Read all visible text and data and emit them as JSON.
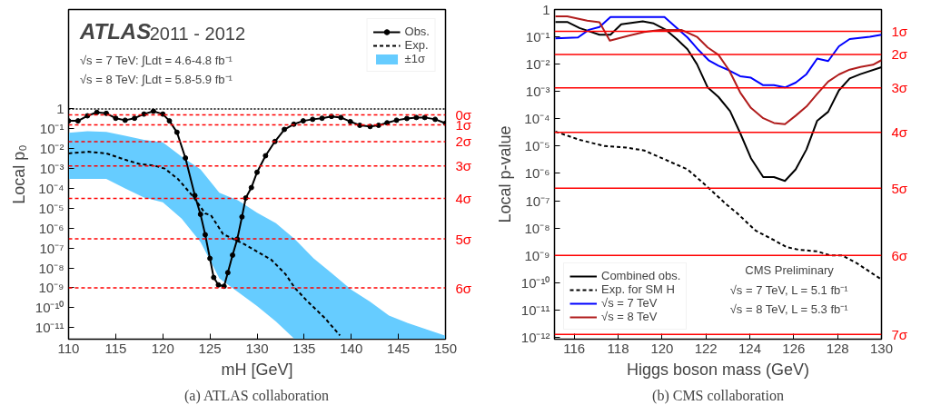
{
  "chart_data": [
    {
      "type": "line",
      "xlabel": "mH [GeV]",
      "ylabel": "Local p₀",
      "log": "y",
      "grid": false,
      "legend": "top right",
      "xlim": [
        110,
        150
      ],
      "xticks": [
        110,
        115,
        120,
        125,
        130,
        135,
        140,
        145,
        150
      ],
      "ylim": [
        2.6e-12,
        100000.0
      ],
      "yticks": [
        1,
        {
          "value": 0.1,
          "label": "10⁻¹"
        },
        {
          "value": 0.01,
          "label": "10⁻²"
        },
        {
          "value": 0.001,
          "label": "10⁻³"
        },
        {
          "value": 0.0001,
          "label": "10⁻⁴"
        },
        {
          "value": 1e-05,
          "label": "10⁻⁵"
        },
        {
          "value": 1e-06,
          "label": "10⁻⁶"
        },
        {
          "value": 1e-07,
          "label": "10⁻⁷"
        },
        {
          "value": 1e-08,
          "label": "10⁻⁸"
        },
        {
          "value": 1e-09,
          "label": "10⁻⁹"
        },
        {
          "value": 1e-10,
          "label": "10⁻¹⁰"
        },
        {
          "value": 1e-11,
          "label": "10⁻¹¹"
        }
      ],
      "series": [
        {
          "name": "Obs.",
          "color": "#000000",
          "marker": "circle",
          "line_style": "solid",
          "x": [
            110,
            111,
            112,
            113,
            114,
            115,
            116,
            117,
            118,
            119,
            120,
            120.7,
            121.5,
            122.4,
            123.4,
            124,
            124.5,
            125,
            125.4,
            125.9,
            126.5,
            126.9,
            127.4,
            127.9,
            128.4,
            128.8,
            129.4,
            130,
            130.9,
            131.9,
            132.9,
            133.9,
            134.9,
            135.9,
            136.9,
            137.9,
            138.9,
            139.9,
            140.9,
            142,
            142.9,
            143.8,
            144.8,
            145.9,
            146.9,
            147.8,
            148.9,
            150
          ],
          "values": [
            0.25,
            0.25,
            0.45,
            0.67,
            0.6,
            0.34,
            0.27,
            0.34,
            0.55,
            0.76,
            0.55,
            0.25,
            0.067,
            0.0034,
            4.4e-05,
            5e-06,
            4.7e-07,
            3e-08,
            3.3e-09,
            1.4e-09,
            1.2e-09,
            5.8e-09,
            4.4e-08,
            2.8e-07,
            3.7e-06,
            3.3e-05,
            0.00011,
            0.00065,
            0.0044,
            0.023,
            0.093,
            0.17,
            0.25,
            0.3,
            0.34,
            0.42,
            0.37,
            0.23,
            0.15,
            0.13,
            0.15,
            0.2,
            0.27,
            0.33,
            0.37,
            0.37,
            0.3,
            0.19
          ]
        },
        {
          "name": "Exp.",
          "color": "#000000",
          "line_style": "dashed",
          "x": [
            110,
            112.1,
            114,
            116.2,
            117.5,
            119.1,
            120.2,
            121.6,
            123.2,
            124.5,
            125.1,
            126.4,
            128.6,
            131.5,
            133,
            134,
            135.3,
            137.2,
            138.8
          ],
          "values": [
            0.0058,
            0.007,
            0.0058,
            0.0026,
            0.0017,
            0.0014,
            0.001,
            0.0003,
            4e-05,
            5.5e-06,
            4.5e-06,
            5e-07,
            1.6e-07,
            2.6e-08,
            5e-09,
            1e-09,
            2.2e-10,
            3e-11,
            4e-12
          ]
        },
        {
          "name": "±1σ",
          "type": "area",
          "color": "#66ccff",
          "x": [
            110,
            112,
            114,
            116,
            118,
            120,
            122,
            124,
            126,
            128,
            130,
            132,
            134,
            136,
            138,
            140,
            142,
            144,
            146,
            148,
            150
          ],
          "values": [
            null,
            null,
            null,
            null,
            null,
            null,
            null,
            null,
            null,
            null,
            null,
            null,
            null,
            null,
            null,
            null,
            null,
            null,
            null,
            null,
            null
          ],
          "upper": [
            0.063,
            0.075,
            0.07,
            0.045,
            0.028,
            0.021,
            0.004,
            0.0009,
            6e-05,
            2.5e-05,
            6e-06,
            1.8e-06,
            2.8e-07,
            3e-08,
            5e-09,
            8e-10,
            2e-10,
            4e-11,
            1.7e-11,
            8e-12,
            3.9e-12
          ],
          "lower": [
            0.0003,
            0.0003,
            0.0003,
            0.0001,
            3.5e-05,
            2e-05,
            3e-06,
            2e-07,
            3e-09,
            6e-10,
            1.2e-10,
            2e-11,
            2.6e-12,
            2.6e-12,
            2.6e-12,
            2.6e-12,
            2.6e-12,
            2.6e-12,
            2.6e-12,
            2.6e-12,
            2.6e-12
          ]
        }
      ],
      "ref_lines": [
        {
          "axis": "y",
          "value": 1,
          "color": "#000000",
          "line_style": "dotted"
        },
        {
          "axis": "y",
          "value": 0.5,
          "label": "0σ",
          "color": "#ff0000",
          "line_style": "dashed"
        },
        {
          "axis": "y",
          "value": 0.1587,
          "label": "1σ",
          "color": "#ff0000",
          "line_style": "dashed"
        },
        {
          "axis": "y",
          "value": 0.02275,
          "label": "2σ",
          "color": "#ff0000",
          "line_style": "dashed"
        },
        {
          "axis": "y",
          "value": 0.00135,
          "label": "3σ",
          "color": "#ff0000",
          "line_style": "dashed"
        },
        {
          "axis": "y",
          "value": 3.17e-05,
          "label": "4σ",
          "color": "#ff0000",
          "line_style": "dashed"
        },
        {
          "axis": "y",
          "value": 2.87e-07,
          "label": "5σ",
          "color": "#ff0000",
          "line_style": "dashed"
        },
        {
          "axis": "y",
          "value": 9.9e-10,
          "label": "6σ",
          "color": "#ff0000",
          "line_style": "dashed"
        }
      ],
      "annotations": [
        "ATLAS",
        "2011 - 2012",
        "√s = 7 TeV: ∫Ldt = 4.6-4.8 fb⁻¹",
        "√s = 8 TeV: ∫Ldt = 5.8-5.9 fb⁻¹",
        "(a) ATLAS collaboration"
      ]
    },
    {
      "type": "line",
      "xlabel": "Higgs boson mass (GeV)",
      "ylabel": "Local p-value",
      "log": "y",
      "grid": false,
      "legend": "bottom left",
      "xlim": [
        115.1,
        130
      ],
      "xticks": [
        116,
        118,
        120,
        122,
        124,
        126,
        128,
        130
      ],
      "ylim": [
        8.5e-13,
        1
      ],
      "yticks": [
        1,
        {
          "value": 0.1,
          "label": "10⁻¹"
        },
        {
          "value": 0.01,
          "label": "10⁻²"
        },
        {
          "value": 0.001,
          "label": "10⁻³"
        },
        {
          "value": 0.0001,
          "label": "10⁻⁴"
        },
        {
          "value": 1e-05,
          "label": "10⁻⁵"
        },
        {
          "value": 1e-06,
          "label": "10⁻⁶"
        },
        {
          "value": 1e-07,
          "label": "10⁻⁷"
        },
        {
          "value": 1e-08,
          "label": "10⁻⁸"
        },
        {
          "value": 1e-09,
          "label": "10⁻⁹"
        },
        {
          "value": 1e-10,
          "label": "10⁻¹⁰"
        },
        {
          "value": 1e-11,
          "label": "10⁻¹¹"
        },
        {
          "value": 1e-12,
          "label": "10⁻¹²"
        }
      ],
      "series": [
        {
          "name": "Combined obs.",
          "color": "#000000",
          "line_style": "solid",
          "x": [
            115.14,
            115.68,
            116.24,
            117.15,
            117.65,
            118.14,
            119.12,
            119.62,
            120.18,
            120.67,
            121.16,
            121.59,
            122.08,
            122.57,
            123.1,
            123.56,
            124.05,
            124.61,
            125.1,
            125.6,
            126.09,
            126.58,
            127.07,
            127.57,
            128.06,
            128.55,
            129.04,
            130
          ],
          "values": [
            0.35,
            0.35,
            0.21,
            0.12,
            0.12,
            0.29,
            0.37,
            0.31,
            0.18,
            0.083,
            0.035,
            0.01,
            0.0014,
            0.00063,
            0.00019,
            3e-05,
            3.6e-06,
            7.3e-07,
            7.3e-07,
            5.3e-07,
            1.4e-06,
            7.5e-06,
            8.5e-05,
            0.00018,
            0.0011,
            0.003,
            0.0043,
            0.0077
          ]
        },
        {
          "name": "Exp. for SM H",
          "color": "#000000",
          "line_style": "dashed",
          "x": [
            115.14,
            116.24,
            117.37,
            118.35,
            119.19,
            120.18,
            121.16,
            121.73,
            122.29,
            122.99,
            123.42,
            124.26,
            125.1,
            125.67,
            126.23,
            127.07,
            127.64,
            128.2,
            128.9,
            130
          ],
          "values": [
            3.4e-05,
            1.7e-05,
            1e-05,
            8.9e-06,
            6.9e-06,
            3.1e-06,
            1.4e-06,
            5.6e-07,
            2.2e-07,
            6.7e-08,
            3.5e-08,
            8.1e-09,
            3.6e-09,
            2e-09,
            1.6e-09,
            1.4e-09,
            1e-09,
            1e-09,
            5e-10,
            1.3e-10
          ]
        },
        {
          "name": "√s = 7 TeV",
          "color": "#0000ff",
          "line_style": "solid",
          "x": [
            115.14,
            116.17,
            116.66,
            117.15,
            117.65,
            120.11,
            120.6,
            121.16,
            121.66,
            122.12,
            122.57,
            123.06,
            123.56,
            124.05,
            124.61,
            125.1,
            125.6,
            126.09,
            126.58,
            127.07,
            127.57,
            128.06,
            128.55,
            129.47,
            130
          ],
          "values": [
            0.088,
            0.095,
            0.18,
            0.23,
            0.53,
            0.53,
            0.24,
            0.095,
            0.033,
            0.014,
            0.0088,
            0.0059,
            0.0036,
            0.0032,
            0.0017,
            0.0017,
            0.0014,
            0.0021,
            0.0043,
            0.016,
            0.013,
            0.045,
            0.083,
            0.1,
            0.12
          ]
        },
        {
          "name": "√s = 8 TeV",
          "color": "#b01c1c",
          "line_style": "solid",
          "x": [
            115.14,
            115.68,
            116.59,
            117.15,
            117.62,
            118.49,
            119.19,
            119.9,
            120.88,
            121.59,
            122.08,
            122.57,
            123.06,
            123.56,
            124.05,
            124.61,
            125.1,
            125.6,
            126.09,
            126.58,
            127.07,
            127.57,
            128.06,
            128.55,
            129.04,
            129.61,
            130
          ],
          "values": [
            0.56,
            0.56,
            0.39,
            0.34,
            0.073,
            0.11,
            0.15,
            0.18,
            0.18,
            0.1,
            0.041,
            0.022,
            0.0059,
            0.00092,
            0.00025,
            0.000105,
            7e-05,
            6.3e-05,
            0.00013,
            0.00028,
            0.00081,
            0.0023,
            0.0042,
            0.0063,
            0.0079,
            0.0095,
            0.014
          ]
        }
      ],
      "ref_lines": [
        {
          "axis": "y",
          "value": 0.1587,
          "label": "1σ",
          "color": "#ff0000",
          "line_style": "solid"
        },
        {
          "axis": "y",
          "value": 0.02275,
          "label": "2σ",
          "color": "#ff0000",
          "line_style": "solid"
        },
        {
          "axis": "y",
          "value": 0.00135,
          "label": "3σ",
          "color": "#ff0000",
          "line_style": "solid"
        },
        {
          "axis": "y",
          "value": 3.17e-05,
          "label": "4σ",
          "color": "#ff0000",
          "line_style": "solid"
        },
        {
          "axis": "y",
          "value": 2.87e-07,
          "label": "5σ",
          "color": "#ff0000",
          "line_style": "solid"
        },
        {
          "axis": "y",
          "value": 9.9e-10,
          "label": "6σ",
          "color": "#ff0000",
          "line_style": "solid"
        },
        {
          "axis": "y",
          "value": 1.28e-12,
          "label": "7σ",
          "color": "#ff0000",
          "line_style": "solid"
        }
      ],
      "annotations": [
        "CMS Preliminary",
        "√s = 7 TeV, L = 5.1 fb⁻¹",
        "√s = 8 TeV, L = 5.3 fb⁻¹",
        "(b) CMS collaboration"
      ]
    }
  ]
}
